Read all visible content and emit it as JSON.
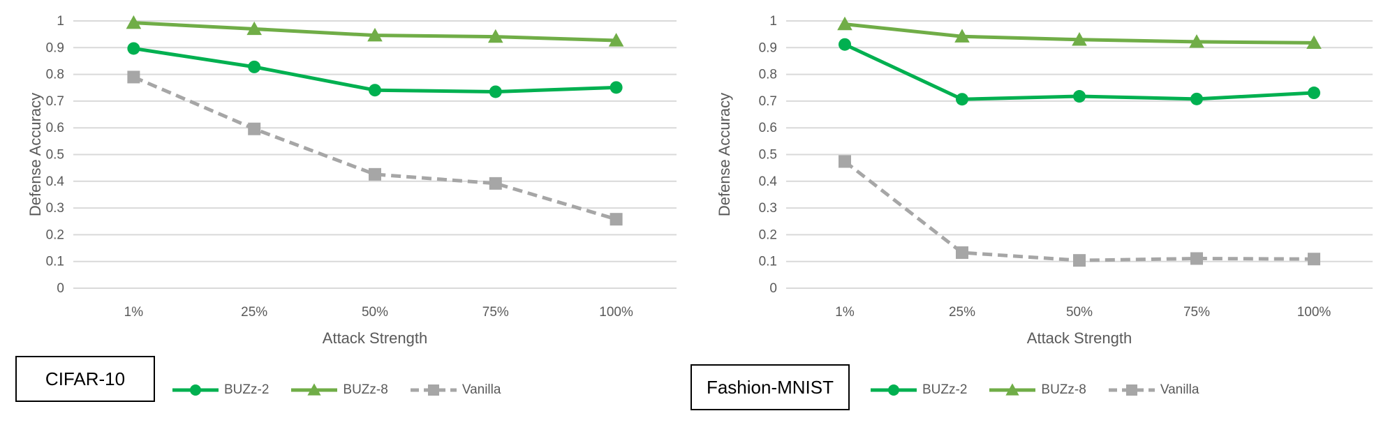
{
  "colors": {
    "buzz2": "#00b050",
    "buzz8": "#70ad47",
    "vanilla": "#a6a6a6",
    "grid": "#d9d9d9",
    "text": "#595959"
  },
  "chart_data": [
    {
      "type": "line",
      "dataset": "CIFAR-10",
      "xlabel": "Attack Strength",
      "ylabel": "Defense Accuracy",
      "categories": [
        "1%",
        "25%",
        "50%",
        "75%",
        "100%"
      ],
      "ylim": [
        0,
        1
      ],
      "yticks": [
        "0",
        "0.1",
        "0.2",
        "0.3",
        "0.4",
        "0.5",
        "0.6",
        "0.7",
        "0.8",
        "0.9",
        "1"
      ],
      "grid": true,
      "legend_position": "bottom",
      "series": [
        {
          "name": "BUZz-2",
          "values": [
            0.897,
            0.828,
            0.741,
            0.735,
            0.751
          ],
          "marker": "circle",
          "dash": false
        },
        {
          "name": "BUZz-8",
          "values": [
            0.993,
            0.97,
            0.946,
            0.941,
            0.927
          ],
          "marker": "triangle",
          "dash": false
        },
        {
          "name": "Vanilla",
          "values": [
            0.79,
            0.596,
            0.426,
            0.392,
            0.258
          ],
          "marker": "square",
          "dash": true
        }
      ]
    },
    {
      "type": "line",
      "dataset": "Fashion-MNIST",
      "xlabel": "Attack Strength",
      "ylabel": "Defense Accuracy",
      "categories": [
        "1%",
        "25%",
        "50%",
        "75%",
        "100%"
      ],
      "ylim": [
        0,
        1
      ],
      "yticks": [
        "0",
        "0.1",
        "0.2",
        "0.3",
        "0.4",
        "0.5",
        "0.6",
        "0.7",
        "0.8",
        "0.9",
        "1"
      ],
      "grid": true,
      "legend_position": "bottom",
      "series": [
        {
          "name": "BUZz-2",
          "values": [
            0.912,
            0.707,
            0.718,
            0.708,
            0.731
          ],
          "marker": "circle",
          "dash": false
        },
        {
          "name": "BUZz-8",
          "values": [
            0.988,
            0.942,
            0.93,
            0.922,
            0.918
          ],
          "marker": "triangle",
          "dash": false
        },
        {
          "name": "Vanilla",
          "values": [
            0.474,
            0.133,
            0.104,
            0.111,
            0.109
          ],
          "marker": "square",
          "dash": true
        }
      ]
    }
  ]
}
